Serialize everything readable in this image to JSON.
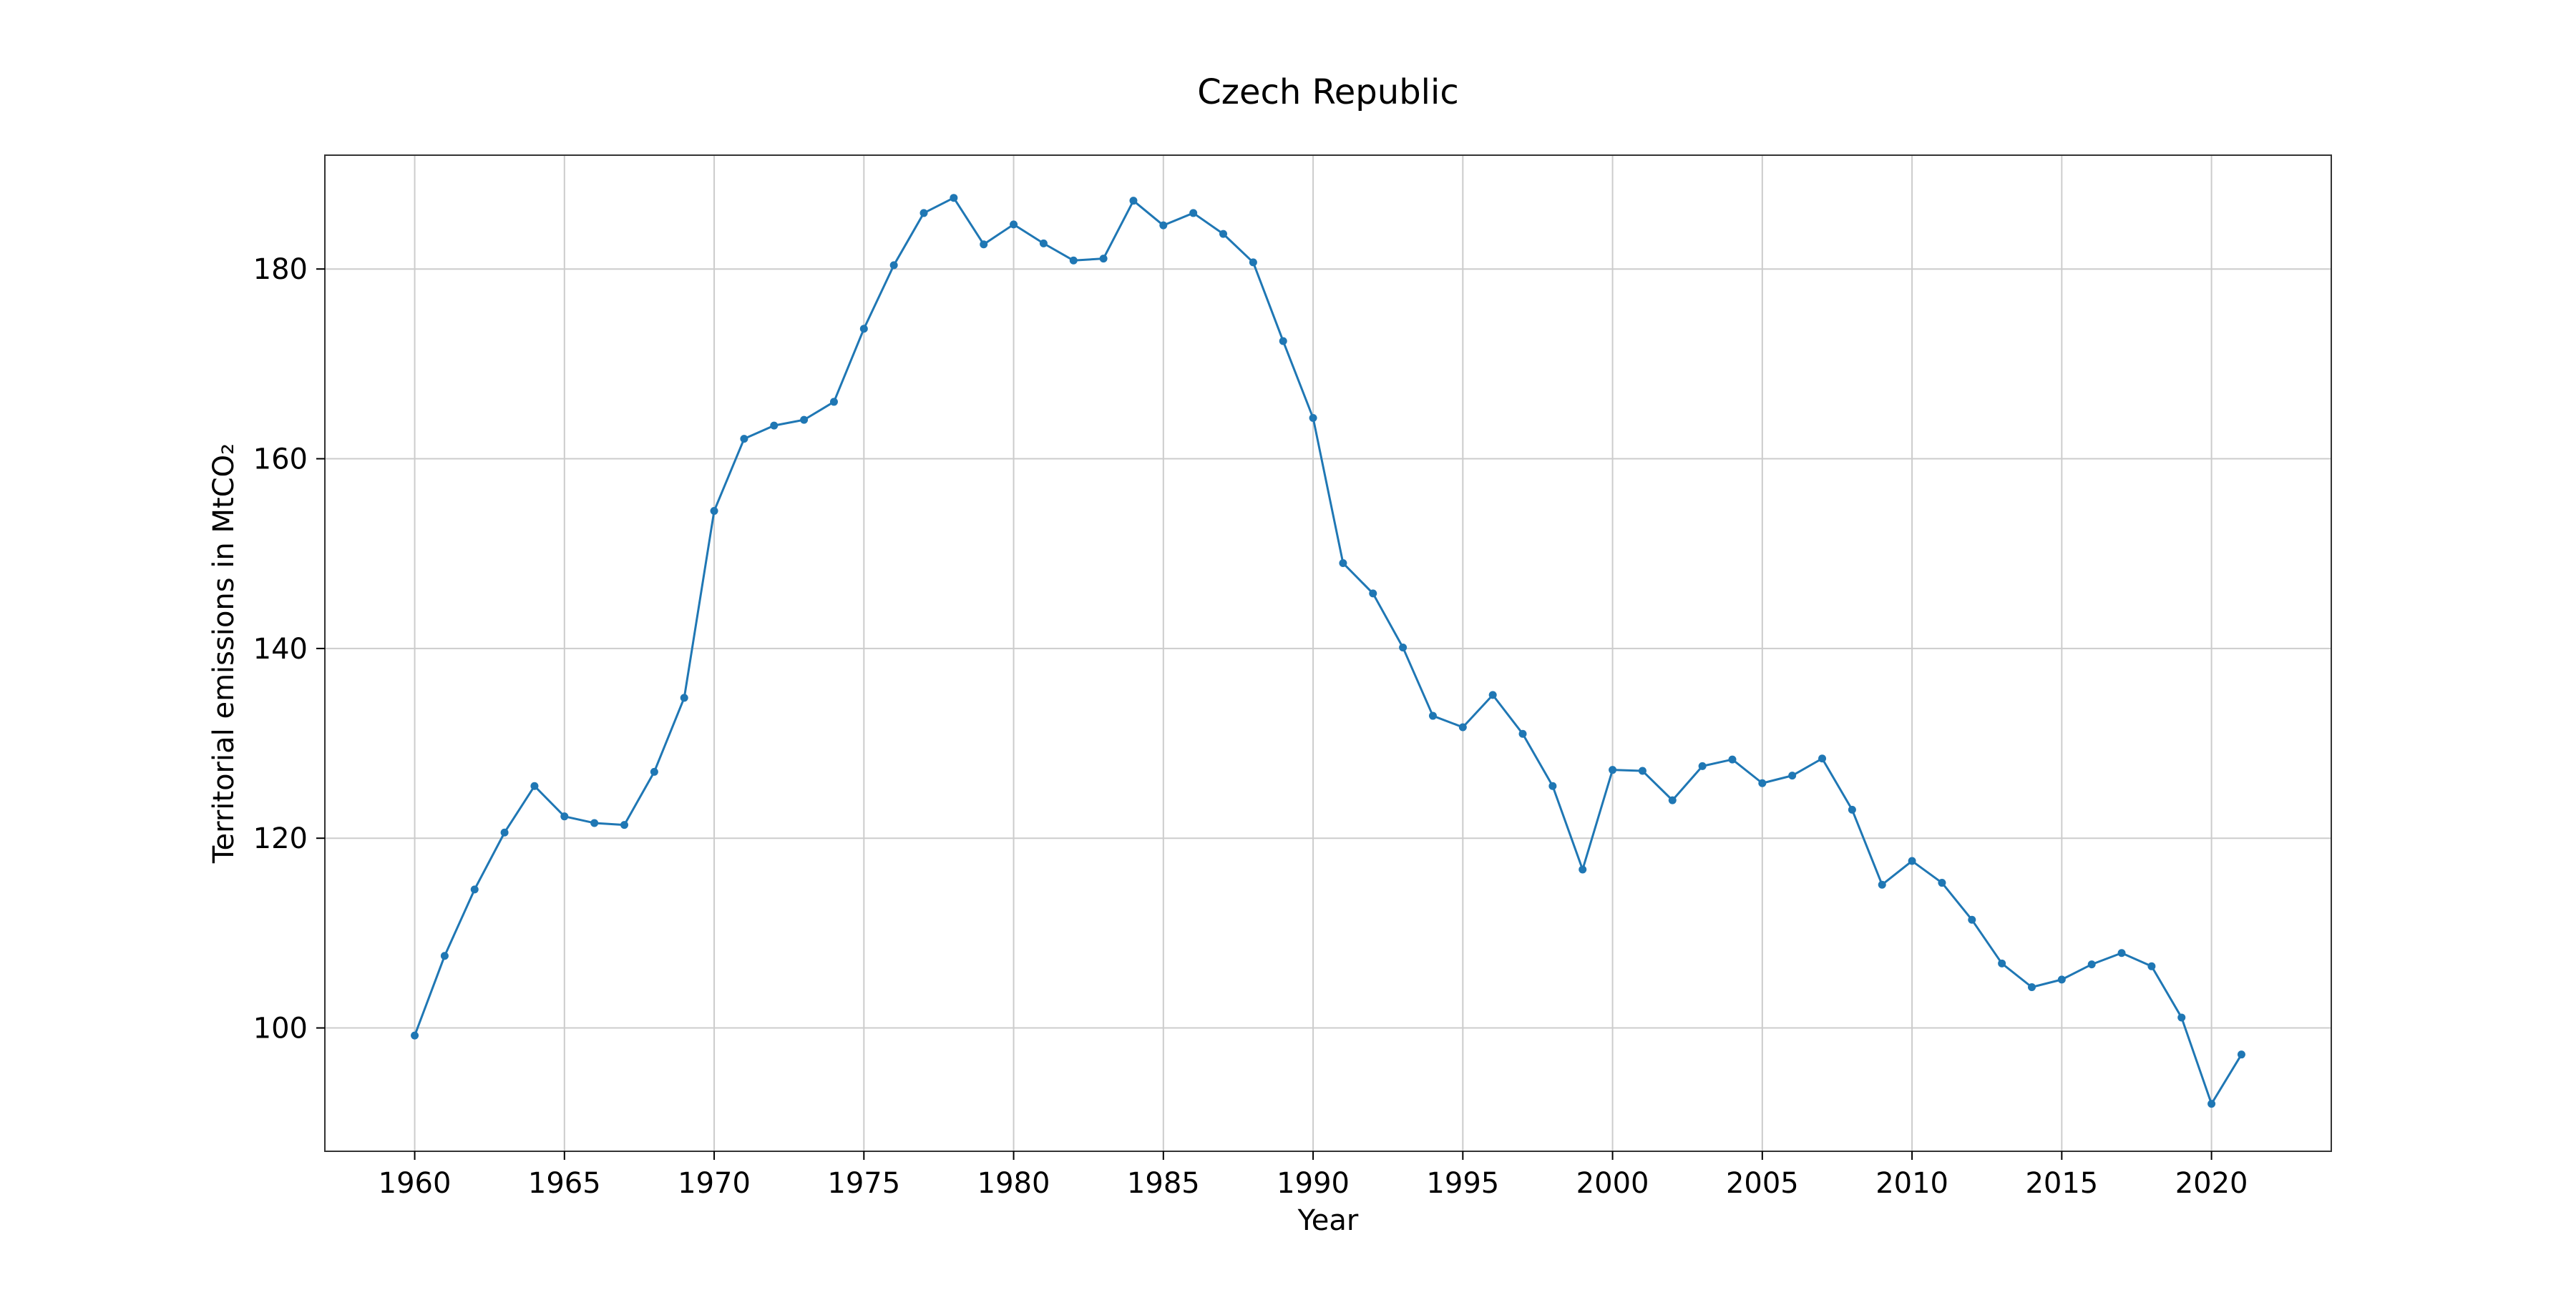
{
  "chart_data": {
    "type": "line",
    "title": "Czech Republic",
    "xlabel": "Year",
    "ylabel": "Territorial emissions in MtCO₂",
    "xlim": [
      1957,
      2024
    ],
    "ylim": [
      87,
      192
    ],
    "xticks": [
      1960,
      1965,
      1970,
      1975,
      1980,
      1985,
      1990,
      1995,
      2000,
      2005,
      2010,
      2015,
      2020
    ],
    "yticks": [
      100,
      120,
      140,
      160,
      180
    ],
    "grid": true,
    "marker": "dot",
    "line_color": "#1f77b4",
    "series": [
      {
        "x": [
          1960,
          1961,
          1962,
          1963,
          1964,
          1965,
          1966,
          1967,
          1968,
          1969,
          1970,
          1971,
          1972,
          1973,
          1974,
          1975,
          1976,
          1977,
          1978,
          1979,
          1980,
          1981,
          1982,
          1983,
          1984,
          1985,
          1986,
          1987,
          1988,
          1989,
          1990,
          1991,
          1992,
          1993,
          1994,
          1995,
          1996,
          1997,
          1998,
          1999,
          2000,
          2001,
          2002,
          2003,
          2004,
          2005,
          2006,
          2007,
          2008,
          2009,
          2010,
          2011,
          2012,
          2013,
          2014,
          2015,
          2016,
          2017,
          2018,
          2019,
          2020,
          2021
        ],
        "y": [
          99.2,
          107.6,
          114.6,
          120.6,
          125.5,
          122.3,
          121.6,
          121.4,
          127.0,
          134.8,
          154.5,
          162.1,
          163.5,
          164.1,
          166.0,
          173.7,
          180.4,
          185.9,
          187.5,
          182.6,
          184.7,
          182.7,
          180.9,
          181.1,
          187.2,
          184.6,
          185.9,
          183.7,
          180.7,
          172.4,
          164.3,
          149.0,
          145.8,
          140.1,
          132.9,
          131.7,
          135.1,
          131.0,
          125.5,
          116.7,
          127.2,
          127.1,
          124.0,
          127.6,
          128.3,
          125.8,
          126.6,
          128.4,
          123.0,
          115.1,
          117.6,
          115.3,
          111.4,
          106.8,
          104.3,
          105.1,
          106.7,
          107.9,
          106.5,
          101.1,
          92.0,
          97.2
        ]
      }
    ]
  }
}
